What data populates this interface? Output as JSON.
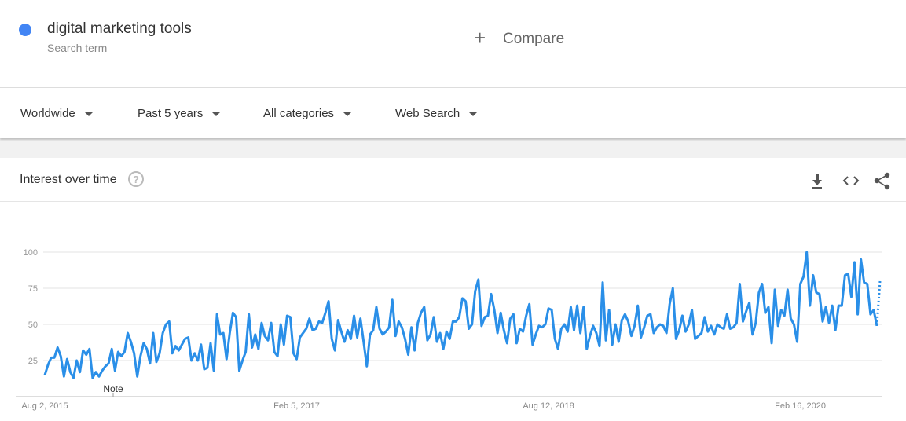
{
  "search_term": {
    "term": "digital marketing tools",
    "subtitle": "Search term"
  },
  "compare": "Compare",
  "filters": [
    "Worldwide",
    "Past 5 years",
    "All categories",
    "Web Search"
  ],
  "card_title": "Interest over time",
  "chart_data": {
    "type": "line",
    "note": "Note",
    "color": "#2a8fe8",
    "ylim": [
      0,
      100
    ],
    "yticks": [
      25,
      50,
      75,
      100
    ],
    "grid": true,
    "categories": [
      "Aug 2, 2015",
      null,
      null,
      null,
      null,
      null,
      null,
      null,
      null,
      null,
      null,
      null,
      null,
      null,
      null,
      null,
      null,
      null,
      null,
      null,
      null,
      null,
      null,
      null,
      null,
      null,
      null,
      null,
      null,
      null,
      null,
      null,
      null,
      null,
      null,
      null,
      null,
      null,
      null,
      null,
      null,
      null,
      null,
      null,
      null,
      null,
      null,
      null,
      null,
      null,
      null,
      null,
      null,
      null,
      null,
      null,
      null,
      null,
      null,
      null,
      null,
      null,
      null,
      null,
      null,
      null,
      null,
      null,
      null,
      null,
      null,
      null,
      null,
      null,
      null,
      null,
      null,
      null,
      null,
      "Feb 5, 2017",
      null,
      null,
      null,
      null,
      null,
      null,
      null,
      null,
      null,
      null,
      null,
      null,
      null,
      null,
      null,
      null,
      null,
      null,
      null,
      null,
      null,
      null,
      null,
      null,
      null,
      null,
      null,
      null,
      null,
      null,
      null,
      null,
      null,
      null,
      null,
      null,
      null,
      null,
      null,
      null,
      null,
      null,
      null,
      null,
      null,
      null,
      null,
      null,
      null,
      null,
      null,
      null,
      null,
      null,
      null,
      null,
      null,
      null,
      null,
      null,
      null,
      null,
      null,
      null,
      null,
      null,
      null,
      null,
      null,
      null,
      null,
      null,
      null,
      null,
      null,
      null,
      null,
      null,
      "Aug 12, 2018",
      null,
      null,
      null,
      null,
      null,
      null,
      null,
      null,
      null,
      null,
      null,
      null,
      null,
      null,
      null,
      null,
      null,
      null,
      null,
      null,
      null,
      null,
      null,
      null,
      null,
      null,
      null,
      null,
      null,
      null,
      null,
      null,
      null,
      null,
      null,
      null,
      null,
      null,
      null,
      null,
      null,
      null,
      null,
      null,
      null,
      null,
      null,
      null,
      null,
      null,
      null,
      null,
      null,
      null,
      null,
      null,
      null,
      null,
      null,
      null,
      null,
      null,
      null,
      null,
      null,
      null,
      null,
      null,
      null,
      null,
      null,
      null,
      null,
      null,
      null,
      null,
      null,
      null,
      "Feb 16, 2020",
      null,
      null,
      null,
      null,
      null,
      null,
      null,
      null,
      null,
      null,
      null,
      null,
      null,
      null,
      null,
      null,
      null,
      null,
      null,
      null,
      null,
      null,
      null,
      null,
      null
    ],
    "values": [
      15,
      22,
      27,
      27,
      34,
      28,
      14,
      26,
      17,
      13,
      25,
      17,
      32,
      29,
      33,
      13,
      17,
      14,
      18,
      21,
      23,
      33,
      18,
      31,
      28,
      31,
      44,
      38,
      30,
      14,
      28,
      37,
      33,
      23,
      44,
      24,
      30,
      44,
      50,
      52,
      30,
      35,
      32,
      36,
      40,
      41,
      25,
      30,
      25,
      36,
      19,
      20,
      37,
      18,
      57,
      43,
      44,
      26,
      44,
      58,
      55,
      18,
      25,
      31,
      57,
      34,
      43,
      33,
      51,
      42,
      39,
      51,
      31,
      28,
      50,
      36,
      56,
      55,
      30,
      26,
      41,
      44,
      47,
      54,
      46,
      47,
      52,
      51,
      58,
      66,
      40,
      32,
      53,
      45,
      38,
      46,
      40,
      56,
      41,
      54,
      38,
      21,
      43,
      46,
      62,
      47,
      43,
      45,
      48,
      67,
      42,
      52,
      48,
      40,
      29,
      48,
      32,
      51,
      58,
      62,
      39,
      43,
      55,
      38,
      44,
      33,
      45,
      40,
      52,
      52,
      55,
      68,
      66,
      47,
      50,
      73,
      81,
      49,
      55,
      56,
      71,
      60,
      44,
      58,
      46,
      37,
      54,
      57,
      37,
      47,
      45,
      56,
      64,
      36,
      43,
      49,
      48,
      50,
      61,
      60,
      40,
      33,
      47,
      50,
      45,
      62,
      46,
      63,
      44,
      62,
      33,
      42,
      49,
      44,
      35,
      79,
      39,
      60,
      36,
      50,
      38,
      53,
      57,
      52,
      42,
      49,
      63,
      41,
      48,
      56,
      57,
      44,
      48,
      50,
      49,
      44,
      64,
      75,
      40,
      46,
      56,
      45,
      50,
      60,
      40,
      42,
      44,
      55,
      45,
      49,
      43,
      50,
      48,
      47,
      57,
      47,
      48,
      51,
      78,
      52,
      59,
      65,
      43,
      51,
      72,
      78,
      58,
      62,
      37,
      74,
      49,
      60,
      56,
      74,
      54,
      50,
      38,
      78,
      83,
      100,
      63,
      84,
      72,
      71,
      52,
      62,
      51,
      63,
      46,
      63,
      63,
      84,
      85,
      69,
      93,
      57,
      95,
      79,
      78,
      57,
      60,
      49,
      80
    ]
  }
}
